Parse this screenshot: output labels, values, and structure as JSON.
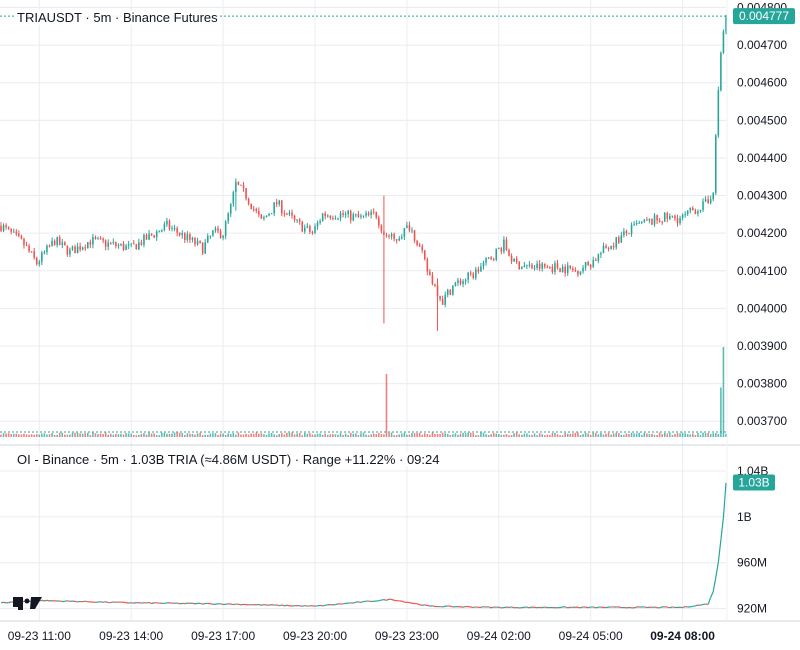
{
  "header": {
    "symbol": "TRIAUSDT",
    "interval": "5m",
    "exchange": "Binance Futures"
  },
  "oi_header": {
    "text": "OI - Binance · 5m · 1.03B TRIA (≈4.86M USDT) · Range +11.22% · 09:24"
  },
  "colors": {
    "up": "#26a69a",
    "down": "#ef5350",
    "grid": "#e9ecf1",
    "last_price_tag": "#26a69a",
    "oi_line": "#26a69a"
  },
  "logo": "tradingview-logo",
  "chart_data": [
    {
      "type": "candlestick",
      "title": "TRIAUSDT · 5m · Binance Futures",
      "interval_minutes": 5,
      "last_price": "0.004777",
      "ylim": [
        0.00365,
        0.00482
      ],
      "y_ticks": [
        "0.003700",
        "0.003800",
        "0.003900",
        "0.004000",
        "0.004100",
        "0.004200",
        "0.004300",
        "0.004400",
        "0.004500",
        "0.004600",
        "0.004700",
        "0.004800"
      ],
      "x_tick_labels": [
        "09-23 11:00",
        "09-23 14:00",
        "09-23 17:00",
        "09-23 20:00",
        "09-23 23:00",
        "09-24 02:00",
        "09-24 05:00",
        "09-24 08:00"
      ],
      "x_range": [
        "09-23 09:45",
        "09-24 09:25"
      ],
      "price_path": [
        [
          "09-23 09:45",
          0.00422
        ],
        [
          "09-23 10:30",
          0.00417
        ],
        [
          "09-23 10:55",
          0.00412
        ],
        [
          "09-23 11:30",
          0.00418
        ],
        [
          "09-23 12:00",
          0.00415
        ],
        [
          "09-23 12:40",
          0.00418
        ],
        [
          "09-23 13:20",
          0.00417
        ],
        [
          "09-23 14:00",
          0.00416
        ],
        [
          "09-23 15:10",
          0.00422
        ],
        [
          "09-23 15:45",
          0.00419
        ],
        [
          "09-23 16:20",
          0.00416
        ],
        [
          "09-23 16:40",
          0.0042
        ],
        [
          "09-23 17:00",
          0.0042
        ],
        [
          "09-23 17:15",
          0.00427
        ],
        [
          "09-23 17:25",
          0.00433
        ],
        [
          "09-23 17:45",
          0.0043
        ],
        [
          "09-23 18:15",
          0.00423
        ],
        [
          "09-23 18:45",
          0.00428
        ],
        [
          "09-23 19:20",
          0.00423
        ],
        [
          "09-23 19:55",
          0.0042
        ],
        [
          "09-23 20:15",
          0.00425
        ],
        [
          "09-23 20:50",
          0.00425
        ],
        [
          "09-23 21:30",
          0.00424
        ],
        [
          "09-23 22:00",
          0.00425
        ],
        [
          "09-23 22:15",
          0.0042
        ],
        [
          "09-23 22:35",
          0.00418
        ],
        [
          "09-23 23:05",
          0.00422
        ],
        [
          "09-23 23:20",
          0.00418
        ],
        [
          "09-23 23:40",
          0.0041
        ],
        [
          "09-24 00:10",
          0.00402
        ],
        [
          "09-24 00:30",
          0.00406
        ],
        [
          "09-24 01:10",
          0.00409
        ],
        [
          "09-24 01:40",
          0.00413
        ],
        [
          "09-24 02:10",
          0.00417
        ],
        [
          "09-24 02:30",
          0.00412
        ],
        [
          "09-24 03:00",
          0.00411
        ],
        [
          "09-24 04:00",
          0.00411
        ],
        [
          "09-24 04:30",
          0.0041
        ],
        [
          "09-24 05:00",
          0.00412
        ],
        [
          "09-24 05:30",
          0.00416
        ],
        [
          "09-24 06:30",
          0.00422
        ],
        [
          "09-24 07:20",
          0.00424
        ],
        [
          "09-24 08:00",
          0.00424
        ],
        [
          "09-24 08:20",
          0.00426
        ],
        [
          "09-24 08:50",
          0.00428
        ],
        [
          "09-24 09:00",
          0.00432
        ],
        [
          "09-24 09:05",
          0.00445
        ],
        [
          "09-24 09:10",
          0.00458
        ],
        [
          "09-24 09:15",
          0.00468
        ],
        [
          "09-24 09:20",
          0.00475
        ],
        [
          "09-24 09:25",
          0.004777
        ]
      ],
      "notable_wicks": [
        [
          "09-23 17:25",
          0.00426,
          0.00434
        ],
        [
          "09-23 22:15",
          0.00396,
          0.0043
        ],
        [
          "09-24 00:00",
          0.00394,
          0.00408
        ]
      ],
      "volume_spikes": [
        [
          "09-23 22:20",
          0.7
        ],
        [
          "09-24 09:15",
          0.55
        ],
        [
          "09-24 09:20",
          1.0
        ]
      ]
    },
    {
      "type": "line",
      "title": "OI - Binance · 5m",
      "last_value": "1.03B",
      "ylim": [
        910000000,
        1040000000
      ],
      "y_ticks": [
        "920M",
        "960M",
        "1B",
        "1.04B"
      ],
      "series": [
        {
          "points": [
            [
              "09-23 09:45",
              925000000
            ],
            [
              "09-23 11:00",
              927000000
            ],
            [
              "09-23 14:00",
              925000000
            ],
            [
              "09-23 17:00",
              924000000
            ],
            [
              "09-23 20:00",
              922000000
            ],
            [
              "09-23 22:30",
              928000000
            ],
            [
              "09-23 23:45",
              922000000
            ],
            [
              "09-24 02:00",
              921000000
            ],
            [
              "09-24 05:00",
              921000000
            ],
            [
              "09-24 08:00",
              921000000
            ],
            [
              "09-24 08:50",
              924000000
            ],
            [
              "09-24 09:00",
              935000000
            ],
            [
              "09-24 09:10",
              960000000
            ],
            [
              "09-24 09:20",
              1000000000
            ],
            [
              "09-24 09:25",
              1030000000
            ]
          ]
        }
      ]
    }
  ]
}
